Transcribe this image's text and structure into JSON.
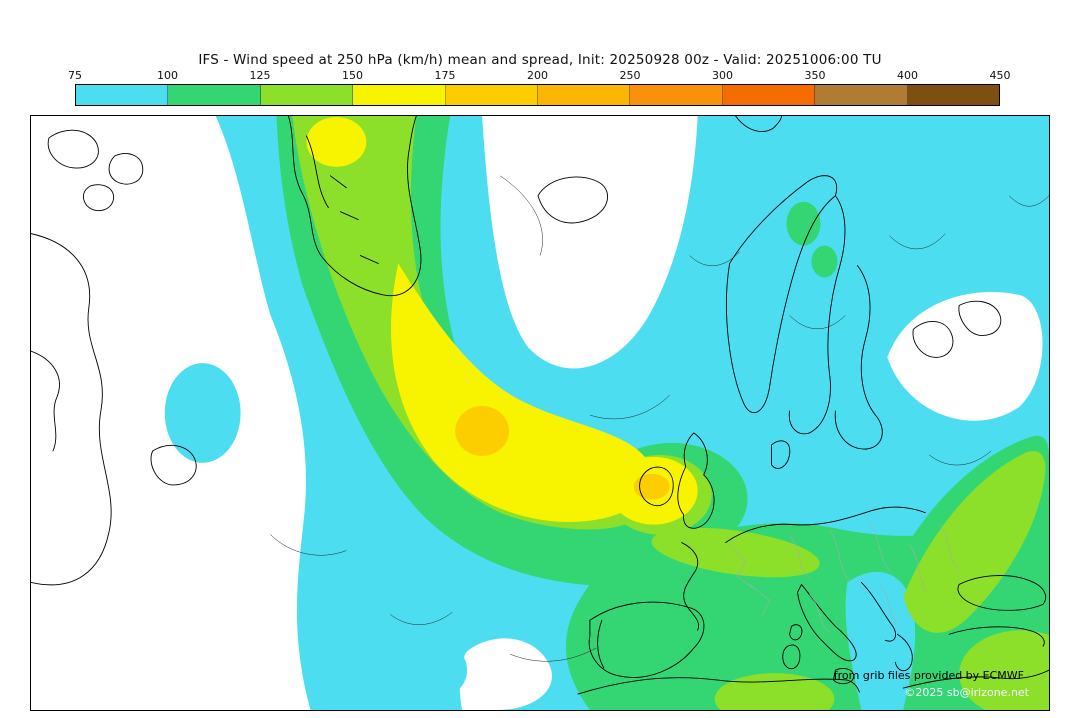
{
  "title": "IFS - Wind speed at 250 hPa (km/h) mean and spread, Init: 20250928 00z - Valid: 20251006:00 TU",
  "colorbar": {
    "tick_labels": [
      "75",
      "100",
      "125",
      "150",
      "175",
      "200",
      "250",
      "300",
      "350",
      "400",
      "450"
    ],
    "segment_colors": [
      "#4cdef0",
      "#33d673",
      "#8ce02a",
      "#f8f400",
      "#fcce00",
      "#fcb405",
      "#f9920a",
      "#f56c00",
      "#b07b33",
      "#7d5012"
    ]
  },
  "palette": {
    "band_75_100": "#4cdef0",
    "band_100_125": "#33d673",
    "band_125_150": "#8ce02a",
    "band_150_175": "#f8f400",
    "band_175_200": "#fcce00",
    "white": "#ffffff",
    "coastline": "#000000",
    "border_gray": "#aaaaaa",
    "contour": "#222222"
  },
  "credits": {
    "source": "from grib files provided by ECMWF",
    "copyright": "©2025 sb@irizone.net"
  },
  "chart_data": {
    "type": "heatmap",
    "title": "IFS - Wind speed at 250 hPa (km/h) mean and spread",
    "model": "IFS",
    "variable": "Wind speed at 250 hPa",
    "units": "km/h",
    "init": "20250928 00z",
    "valid_time": "20251006:00 TU",
    "region": "North Atlantic / Europe",
    "scale_ticks": [
      75,
      100,
      125,
      150,
      175,
      200,
      250,
      300,
      350,
      400,
      450
    ],
    "scale_colors": [
      "#4cdef0",
      "#33d673",
      "#8ce02a",
      "#f8f400",
      "#fcce00",
      "#fcb405",
      "#f9920a",
      "#f56c00",
      "#b07b33",
      "#7d5012"
    ],
    "features": [
      {
        "label": "jet streak maximum 175-200 km/h",
        "location": "mid-Atlantic, southwest of Ireland"
      },
      {
        "label": "secondary maximum 175-200 km/h",
        "location": "over Ireland"
      },
      {
        "label": "150-175 km/h jet core band",
        "location": "curving from Greenland southeast across the Atlantic into western Europe"
      },
      {
        "label": "125-150 km/h band",
        "location": "around jet core and along eastern Europe / Black Sea axis"
      },
      {
        "label": "100-125 km/h band",
        "location": "broad band across central Atlantic, Europe and Mediterranean"
      },
      {
        "label": "75-100 km/h background flow",
        "location": "most of the Atlantic, Scandinavia and eastern map area"
      },
      {
        "label": "below 75 km/h (white)",
        "location": "North America interior, Greenland Sea, northwest Russia"
      }
    ]
  }
}
